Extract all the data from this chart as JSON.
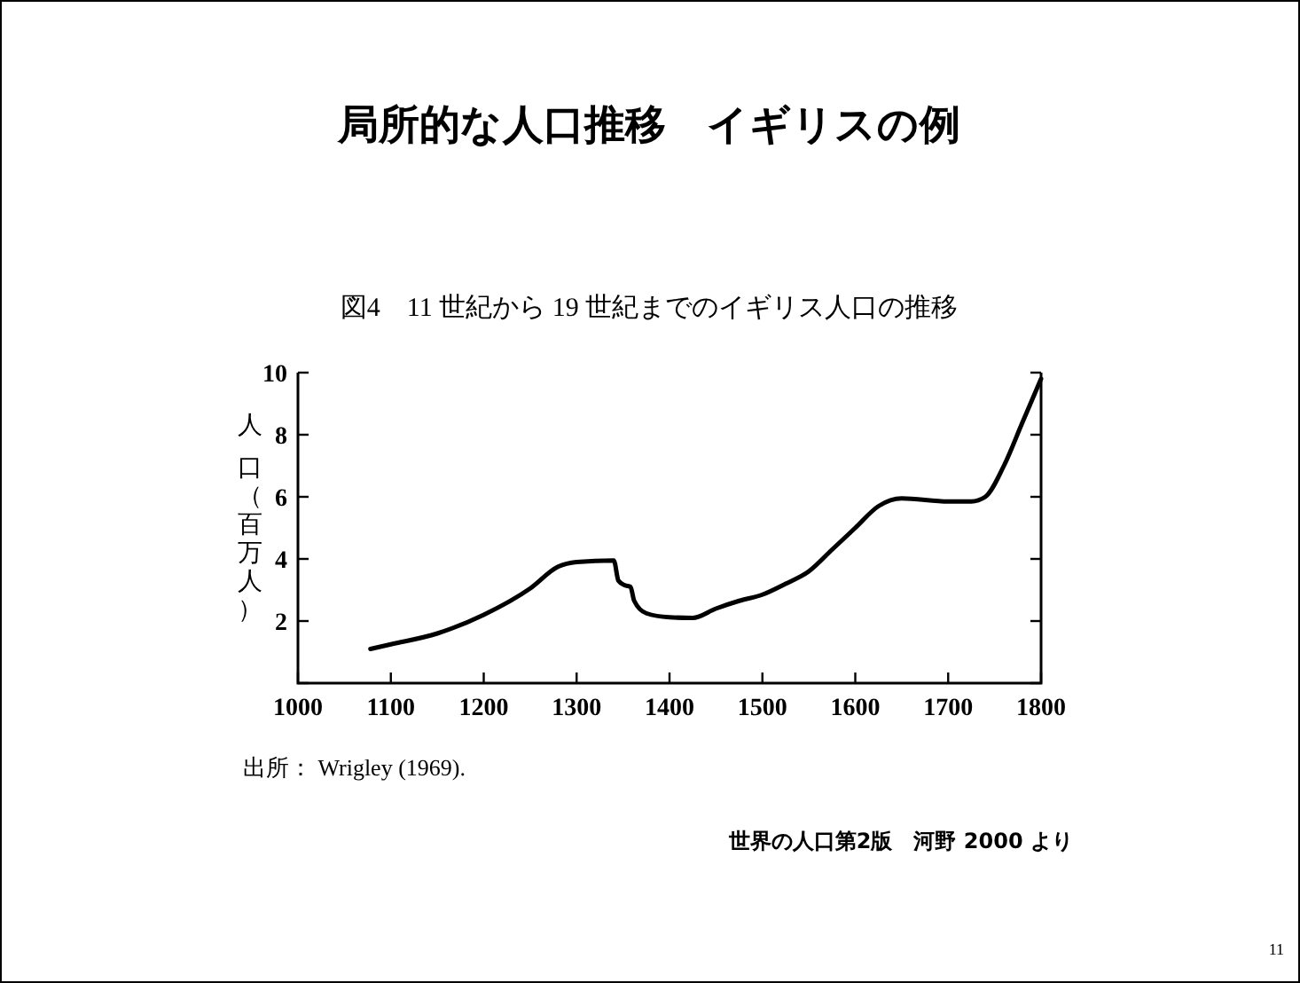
{
  "chart_data": {
    "type": "line",
    "title": "局所的な人口推移　イギリスの例",
    "subtitle": "図4　11 世紀から 19 世紀までのイギリス人口の推移",
    "ylabel": "人口（百万人）",
    "x": [
      1078,
      1100,
      1150,
      1200,
      1250,
      1280,
      1300,
      1340,
      1345,
      1352,
      1358,
      1362,
      1375,
      1400,
      1425,
      1450,
      1475,
      1500,
      1525,
      1550,
      1575,
      1600,
      1625,
      1650,
      1700,
      1725,
      1740,
      1760,
      1780,
      1800
    ],
    "series": [
      {
        "color": "#000000",
        "values": [
          1.1,
          1.25,
          1.6,
          2.2,
          3.05,
          3.75,
          3.9,
          3.95,
          3.3,
          3.15,
          3.1,
          2.65,
          2.25,
          2.12,
          2.1,
          2.4,
          2.65,
          2.85,
          3.2,
          3.6,
          4.3,
          5.0,
          5.7,
          5.95,
          5.85,
          5.85,
          6.0,
          7.0,
          8.4,
          9.8
        ]
      }
    ],
    "xlim": [
      1000,
      1800
    ],
    "xticks": [
      1000,
      1100,
      1200,
      1300,
      1400,
      1500,
      1600,
      1700,
      1800
    ],
    "ylim": [
      0,
      10
    ],
    "yticks": [
      {
        "value": 0,
        "label": null
      },
      2,
      4,
      6,
      8,
      10
    ],
    "grid": false,
    "marker": "none",
    "line_style": "solid",
    "annotations": [
      "出所： Wrigley (1969).",
      "世界の人口第2版　河野 2000 より",
      "11"
    ]
  }
}
